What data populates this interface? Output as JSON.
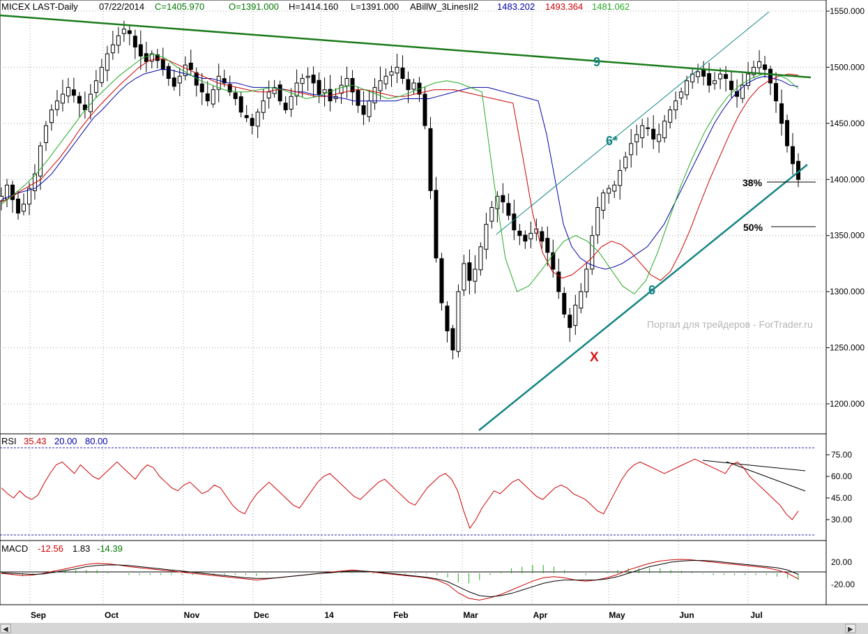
{
  "header": {
    "symbol": "MICEX LAST-Daily",
    "date": "07/22/2014",
    "close": "C=1405.970",
    "open": "O=1391.000",
    "high": "H=1414.160",
    "low": "L=1391.000",
    "indicator": "ABillW_3LinesII2",
    "ind_blue": "1483.202",
    "ind_red": "1493.364",
    "ind_green": "1481.062"
  },
  "rsi_header": {
    "name": "RSI",
    "value": "35.43",
    "low": "20.00",
    "high": "80.00"
  },
  "macd_header": {
    "name": "MACD",
    "macd": "-12.56",
    "signal": "1.83",
    "hist": "-14.39"
  },
  "annotations": {
    "wave9": "9",
    "wave6star": "6*",
    "wave6": "6",
    "x": "X",
    "fib38": "38%",
    "fib50": "50%",
    "watermark": "Портал для трейдеров - ForTrader.ru"
  },
  "colors": {
    "header_green": "#007700",
    "header_blue": "#0000aa",
    "header_red": "#cc0000",
    "trend_green": "#1a7a1a",
    "channel_teal": "#138484",
    "x_red": "#dd1111"
  },
  "chart_data": [
    {
      "type": "candlestick",
      "title": "MICEX LAST-Daily",
      "ylim": [
        1170,
        1560
      ],
      "y_ticks": [
        "1550.000",
        "1500.000",
        "1450.000",
        "1400.000",
        "1350.000",
        "1300.000",
        "1250.000",
        "1200.000"
      ],
      "x_months": [
        "Sep",
        "Oct",
        "Nov",
        "Dec",
        "14",
        "Feb",
        "Mar",
        "Apr",
        "May",
        "Jun",
        "Jul"
      ],
      "close_path": [
        1385,
        1395,
        1382,
        1370,
        1378,
        1392,
        1405,
        1430,
        1448,
        1462,
        1470,
        1476,
        1482,
        1475,
        1468,
        1462,
        1476,
        1488,
        1500,
        1512,
        1520,
        1528,
        1534,
        1530,
        1518,
        1510,
        1505,
        1512,
        1506,
        1498,
        1490,
        1483,
        1492,
        1502,
        1498,
        1484,
        1478,
        1470,
        1480,
        1492,
        1486,
        1478,
        1472,
        1460,
        1455,
        1448,
        1460,
        1470,
        1478,
        1482,
        1470,
        1462,
        1474,
        1486,
        1490,
        1492,
        1486,
        1476,
        1480,
        1470,
        1474,
        1484,
        1490,
        1478,
        1466,
        1458,
        1470,
        1482,
        1488,
        1492,
        1496,
        1500,
        1490,
        1480,
        1486,
        1476,
        1448,
        1390,
        1330,
        1290,
        1265,
        1248,
        1300,
        1325,
        1310,
        1320,
        1340,
        1360,
        1375,
        1385,
        1380,
        1368,
        1355,
        1350,
        1345,
        1352,
        1356,
        1345,
        1335,
        1320,
        1300,
        1280,
        1268,
        1288,
        1300,
        1320,
        1350,
        1375,
        1388,
        1392,
        1395,
        1408,
        1420,
        1432,
        1440,
        1448,
        1446,
        1436,
        1440,
        1452,
        1462,
        1470,
        1478,
        1488,
        1494,
        1496,
        1492,
        1484,
        1488,
        1494,
        1490,
        1480,
        1474,
        1484,
        1494,
        1500,
        1505,
        1498,
        1486,
        1470,
        1450,
        1430,
        1414,
        1400
      ],
      "ma_blue_path": [
        1382,
        1385,
        1388,
        1390,
        1392,
        1398,
        1405,
        1415,
        1425,
        1435,
        1445,
        1455,
        1462,
        1470,
        1478,
        1485,
        1490,
        1494,
        1496,
        1498,
        1498,
        1496,
        1494,
        1492,
        1490,
        1490,
        1488,
        1486,
        1486,
        1484,
        1482,
        1482,
        1482,
        1481,
        1480,
        1478,
        1478,
        1476,
        1475,
        1474,
        1473,
        1472,
        1470,
        1470,
        1470,
        1470,
        1470,
        1470,
        1472,
        1472,
        1472,
        1472,
        1474,
        1476,
        1478,
        1480,
        1482,
        1482,
        1482,
        1480,
        1478,
        1476,
        1474,
        1472,
        1470,
        1440,
        1400,
        1360,
        1340,
        1330,
        1325,
        1322,
        1320,
        1322,
        1325,
        1330,
        1335,
        1340,
        1350,
        1360,
        1375,
        1390,
        1405,
        1420,
        1435,
        1450,
        1462,
        1472,
        1480,
        1486,
        1490,
        1492,
        1490,
        1488,
        1484,
        1483
      ],
      "ma_red_path": [
        1380,
        1384,
        1390,
        1395,
        1400,
        1410,
        1420,
        1432,
        1445,
        1456,
        1466,
        1475,
        1484,
        1492,
        1500,
        1506,
        1508,
        1506,
        1502,
        1498,
        1494,
        1490,
        1486,
        1484,
        1482,
        1480,
        1478,
        1478,
        1480,
        1480,
        1478,
        1476,
        1474,
        1474,
        1476,
        1478,
        1480,
        1480,
        1478,
        1476,
        1474,
        1474,
        1476,
        1478,
        1480,
        1480,
        1480,
        1478,
        1476,
        1474,
        1472,
        1470,
        1468,
        1420,
        1370,
        1335,
        1318,
        1312,
        1315,
        1322,
        1330,
        1340,
        1345,
        1342,
        1335,
        1325,
        1315,
        1310,
        1318,
        1335,
        1355,
        1378,
        1400,
        1420,
        1440,
        1458,
        1472,
        1482,
        1488,
        1492,
        1494,
        1493
      ],
      "ma_green_path": [
        1378,
        1386,
        1395,
        1405,
        1418,
        1432,
        1446,
        1460,
        1472,
        1482,
        1492,
        1500,
        1508,
        1512,
        1508,
        1500,
        1494,
        1488,
        1484,
        1480,
        1478,
        1478,
        1480,
        1482,
        1480,
        1476,
        1472,
        1474,
        1478,
        1482,
        1484,
        1480,
        1476,
        1472,
        1474,
        1478,
        1482,
        1486,
        1488,
        1486,
        1482,
        1478,
        1400,
        1330,
        1300,
        1305,
        1318,
        1332,
        1345,
        1350,
        1345,
        1335,
        1320,
        1305,
        1298,
        1310,
        1335,
        1365,
        1395,
        1420,
        1442,
        1460,
        1474,
        1484,
        1490,
        1494,
        1494,
        1490,
        1481
      ]
    },
    {
      "type": "line",
      "title": "RSI",
      "ylim": [
        15,
        85
      ],
      "y_ticks": [
        "75.00",
        "60.00",
        "45.00",
        "30.00"
      ],
      "levels": [
        20,
        80
      ],
      "values": [
        52,
        48,
        45,
        50,
        46,
        44,
        47,
        55,
        62,
        68,
        70,
        66,
        62,
        68,
        64,
        60,
        58,
        62,
        66,
        70,
        66,
        62,
        58,
        64,
        68,
        66,
        60,
        56,
        52,
        50,
        54,
        56,
        52,
        48,
        50,
        54,
        52,
        46,
        40,
        36,
        34,
        42,
        48,
        52,
        56,
        52,
        48,
        44,
        40,
        38,
        44,
        50,
        56,
        60,
        62,
        58,
        54,
        50,
        46,
        44,
        48,
        52,
        56,
        58,
        54,
        50,
        46,
        42,
        40,
        46,
        52,
        56,
        60,
        62,
        58,
        50,
        36,
        24,
        30,
        38,
        44,
        50,
        48,
        52,
        56,
        58,
        54,
        50,
        46,
        44,
        48,
        52,
        54,
        52,
        48,
        46,
        44,
        40,
        36,
        34,
        42,
        50,
        58,
        64,
        68,
        70,
        68,
        66,
        64,
        62,
        64,
        66,
        68,
        70,
        72,
        70,
        68,
        66,
        64,
        62,
        68,
        70,
        66,
        60,
        56,
        52,
        48,
        44,
        40,
        34,
        30,
        36
      ]
    },
    {
      "type": "line",
      "title": "MACD",
      "ylim": [
        -50,
        40
      ],
      "y_ticks": [
        "20.00",
        "-20.00"
      ],
      "macd": [
        0,
        -2,
        -4,
        -3,
        0,
        4,
        8,
        12,
        16,
        18,
        17,
        15,
        12,
        10,
        8,
        6,
        4,
        2,
        0,
        -2,
        -4,
        -6,
        -8,
        -10,
        -12,
        -10,
        -8,
        -6,
        -4,
        -2,
        0,
        2,
        4,
        6,
        4,
        2,
        0,
        -2,
        -4,
        -6,
        -8,
        -12,
        -20,
        -35,
        -45,
        -48,
        -44,
        -38,
        -30,
        -22,
        -14,
        -8,
        -6,
        -8,
        -12,
        -14,
        -12,
        -8,
        -2,
        6,
        12,
        18,
        22,
        24,
        25,
        24,
        22,
        20,
        18,
        16,
        14,
        12,
        10,
        6,
        0,
        -10
      ],
      "signal": [
        1,
        0,
        -1,
        -2,
        -1,
        2,
        5,
        8,
        12,
        14,
        15,
        15,
        14,
        12,
        10,
        8,
        6,
        4,
        2,
        0,
        -2,
        -4,
        -6,
        -8,
        -9,
        -9,
        -8,
        -6,
        -4,
        -2,
        0,
        1,
        3,
        4,
        4,
        3,
        1,
        -1,
        -3,
        -5,
        -7,
        -10,
        -15,
        -24,
        -33,
        -40,
        -42,
        -40,
        -36,
        -30,
        -24,
        -18,
        -14,
        -12,
        -12,
        -12,
        -12,
        -10,
        -6,
        0,
        6,
        12,
        16,
        20,
        22,
        23,
        23,
        22,
        20,
        18,
        16,
        14,
        12,
        10,
        6,
        -2
      ]
    }
  ]
}
